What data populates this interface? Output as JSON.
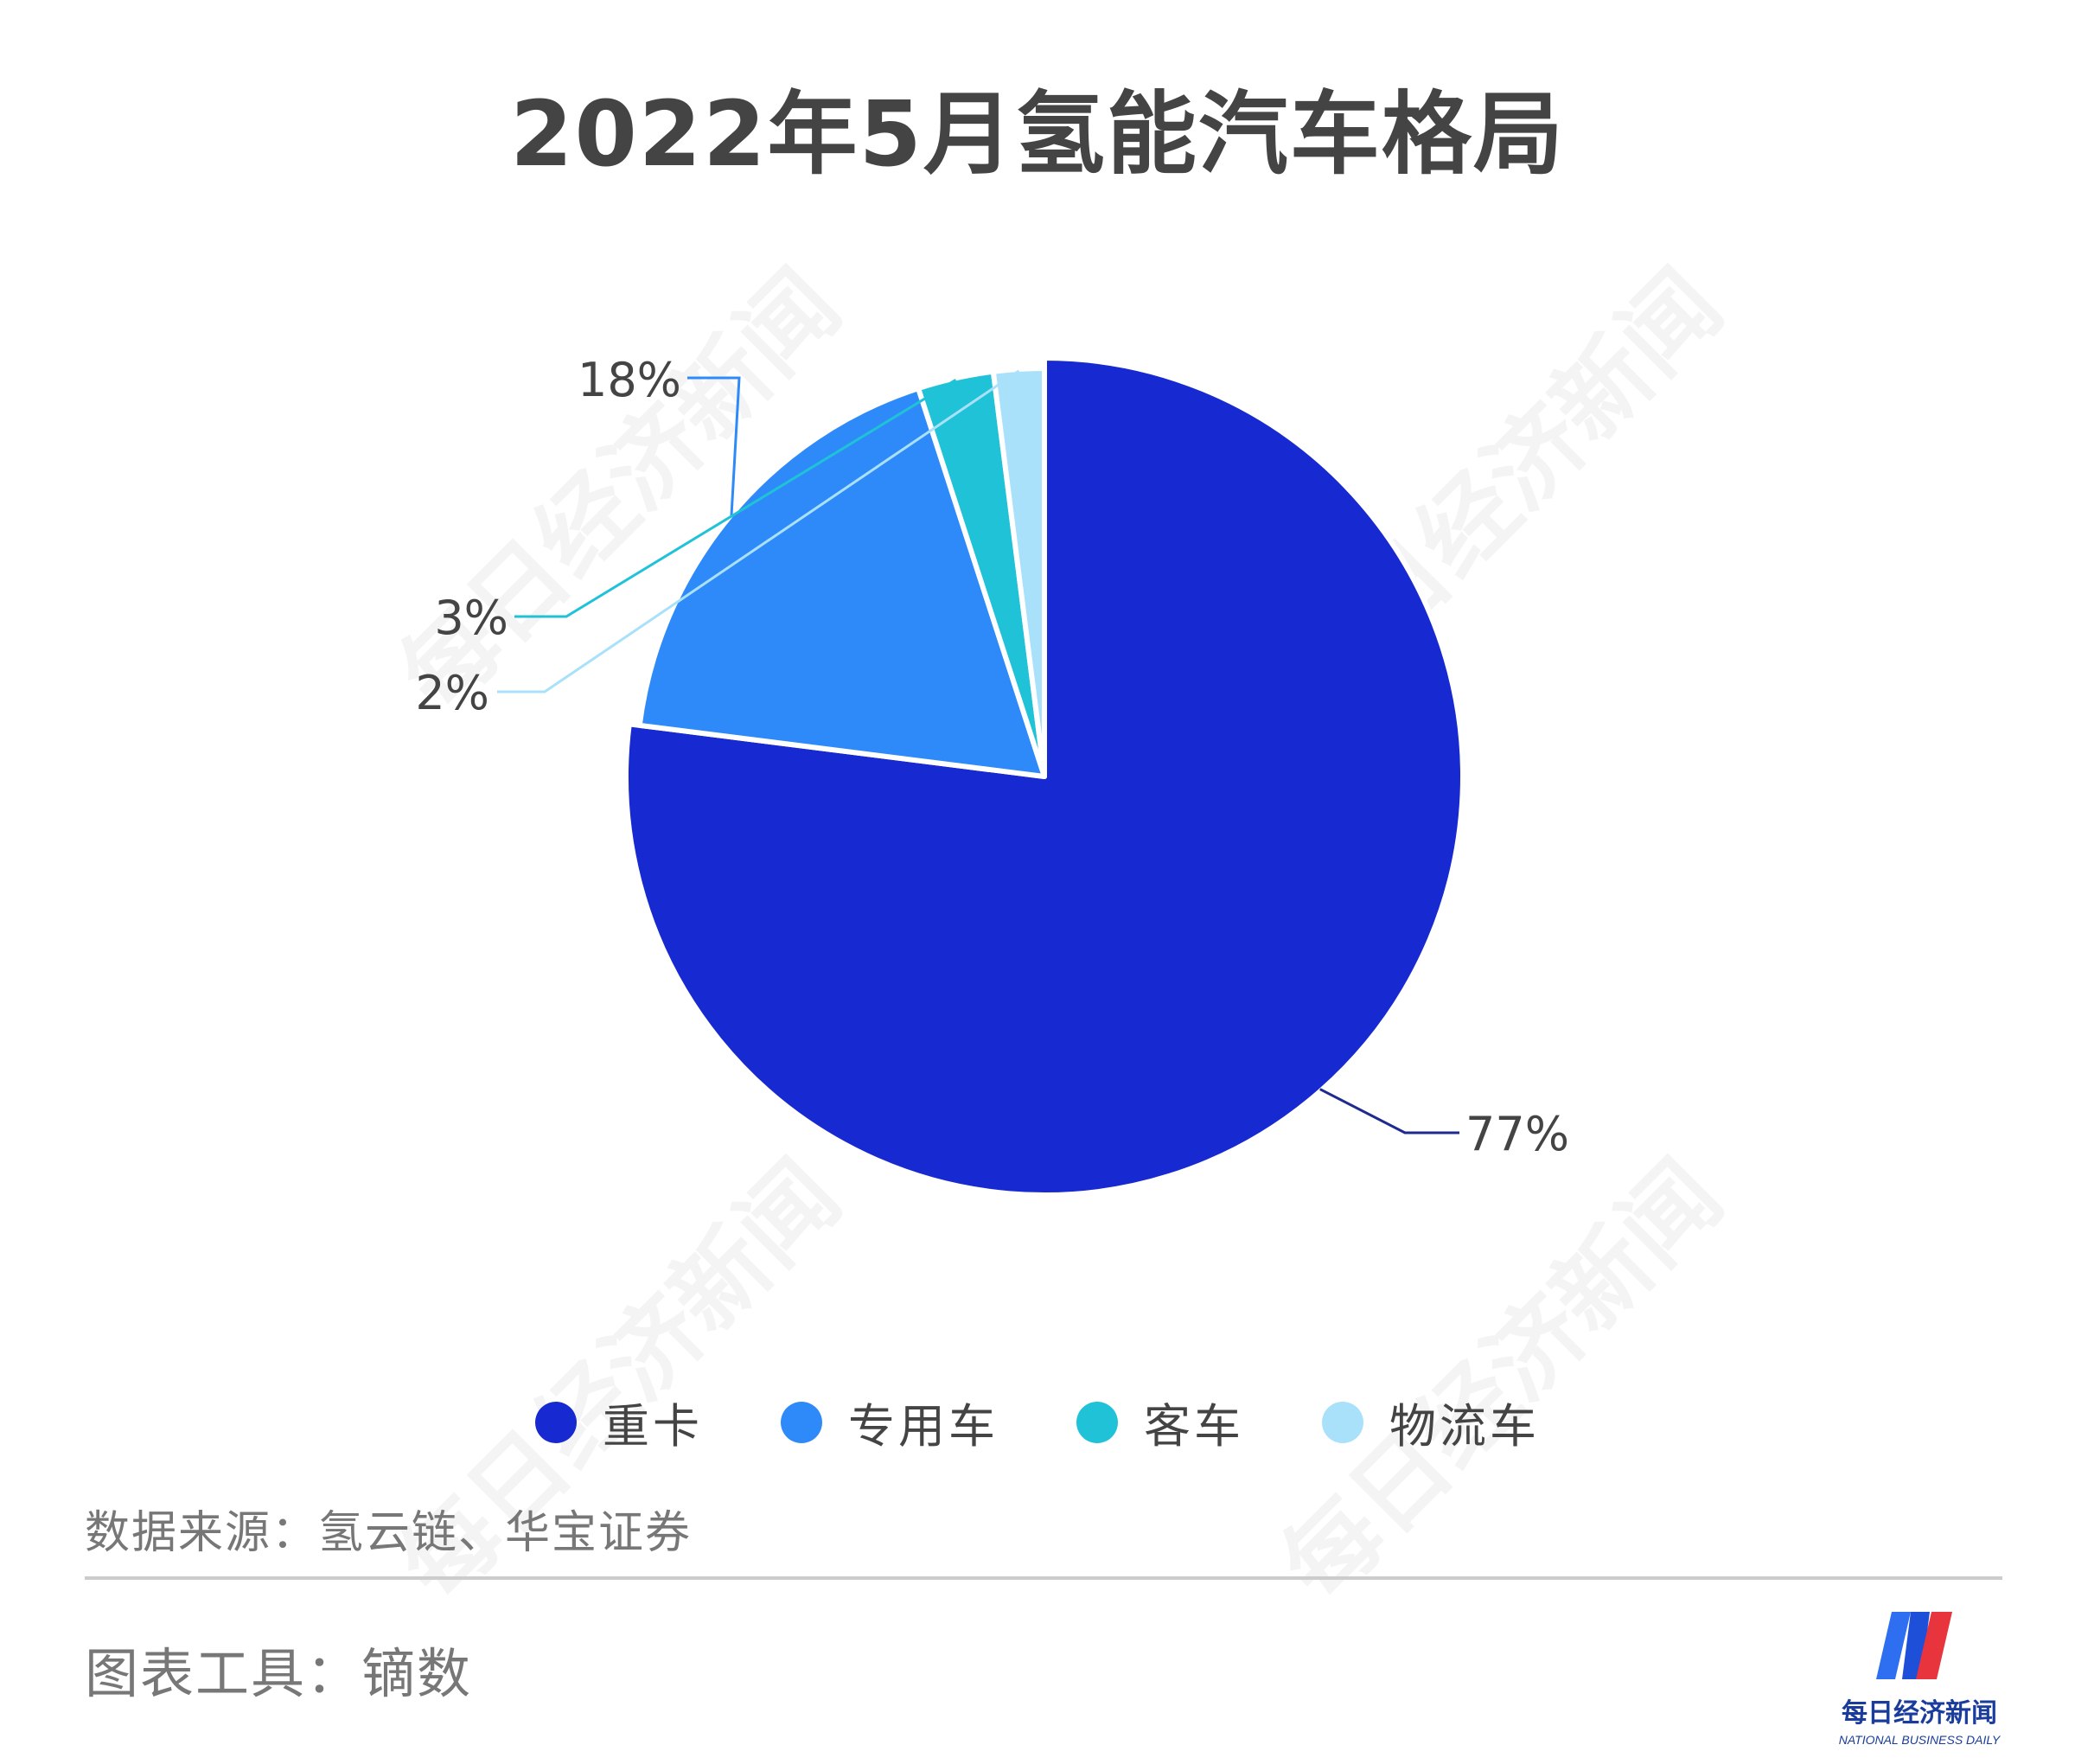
{
  "chart_data": {
    "type": "pie",
    "title": "2022年5月氢能汽车格局",
    "categories": [
      "重卡",
      "专用车",
      "客车",
      "物流车"
    ],
    "values": [
      77,
      18,
      3,
      2
    ],
    "value_labels": [
      "77%",
      "18%",
      "3%",
      "2%"
    ],
    "colors": [
      "#1729d1",
      "#2e8af8",
      "#20c2d8",
      "#a9e1fa"
    ],
    "legend_position": "bottom",
    "start_angle": "12 o'clock, clockwise"
  },
  "footer": {
    "source": "数据来源：氢云链、华宝证券",
    "tool": "图表工具：镝数"
  },
  "logo": {
    "name": "每日经济新闻",
    "name_en": "NATIONAL BUSINESS DAILY"
  },
  "watermark": "每日经济新闻"
}
